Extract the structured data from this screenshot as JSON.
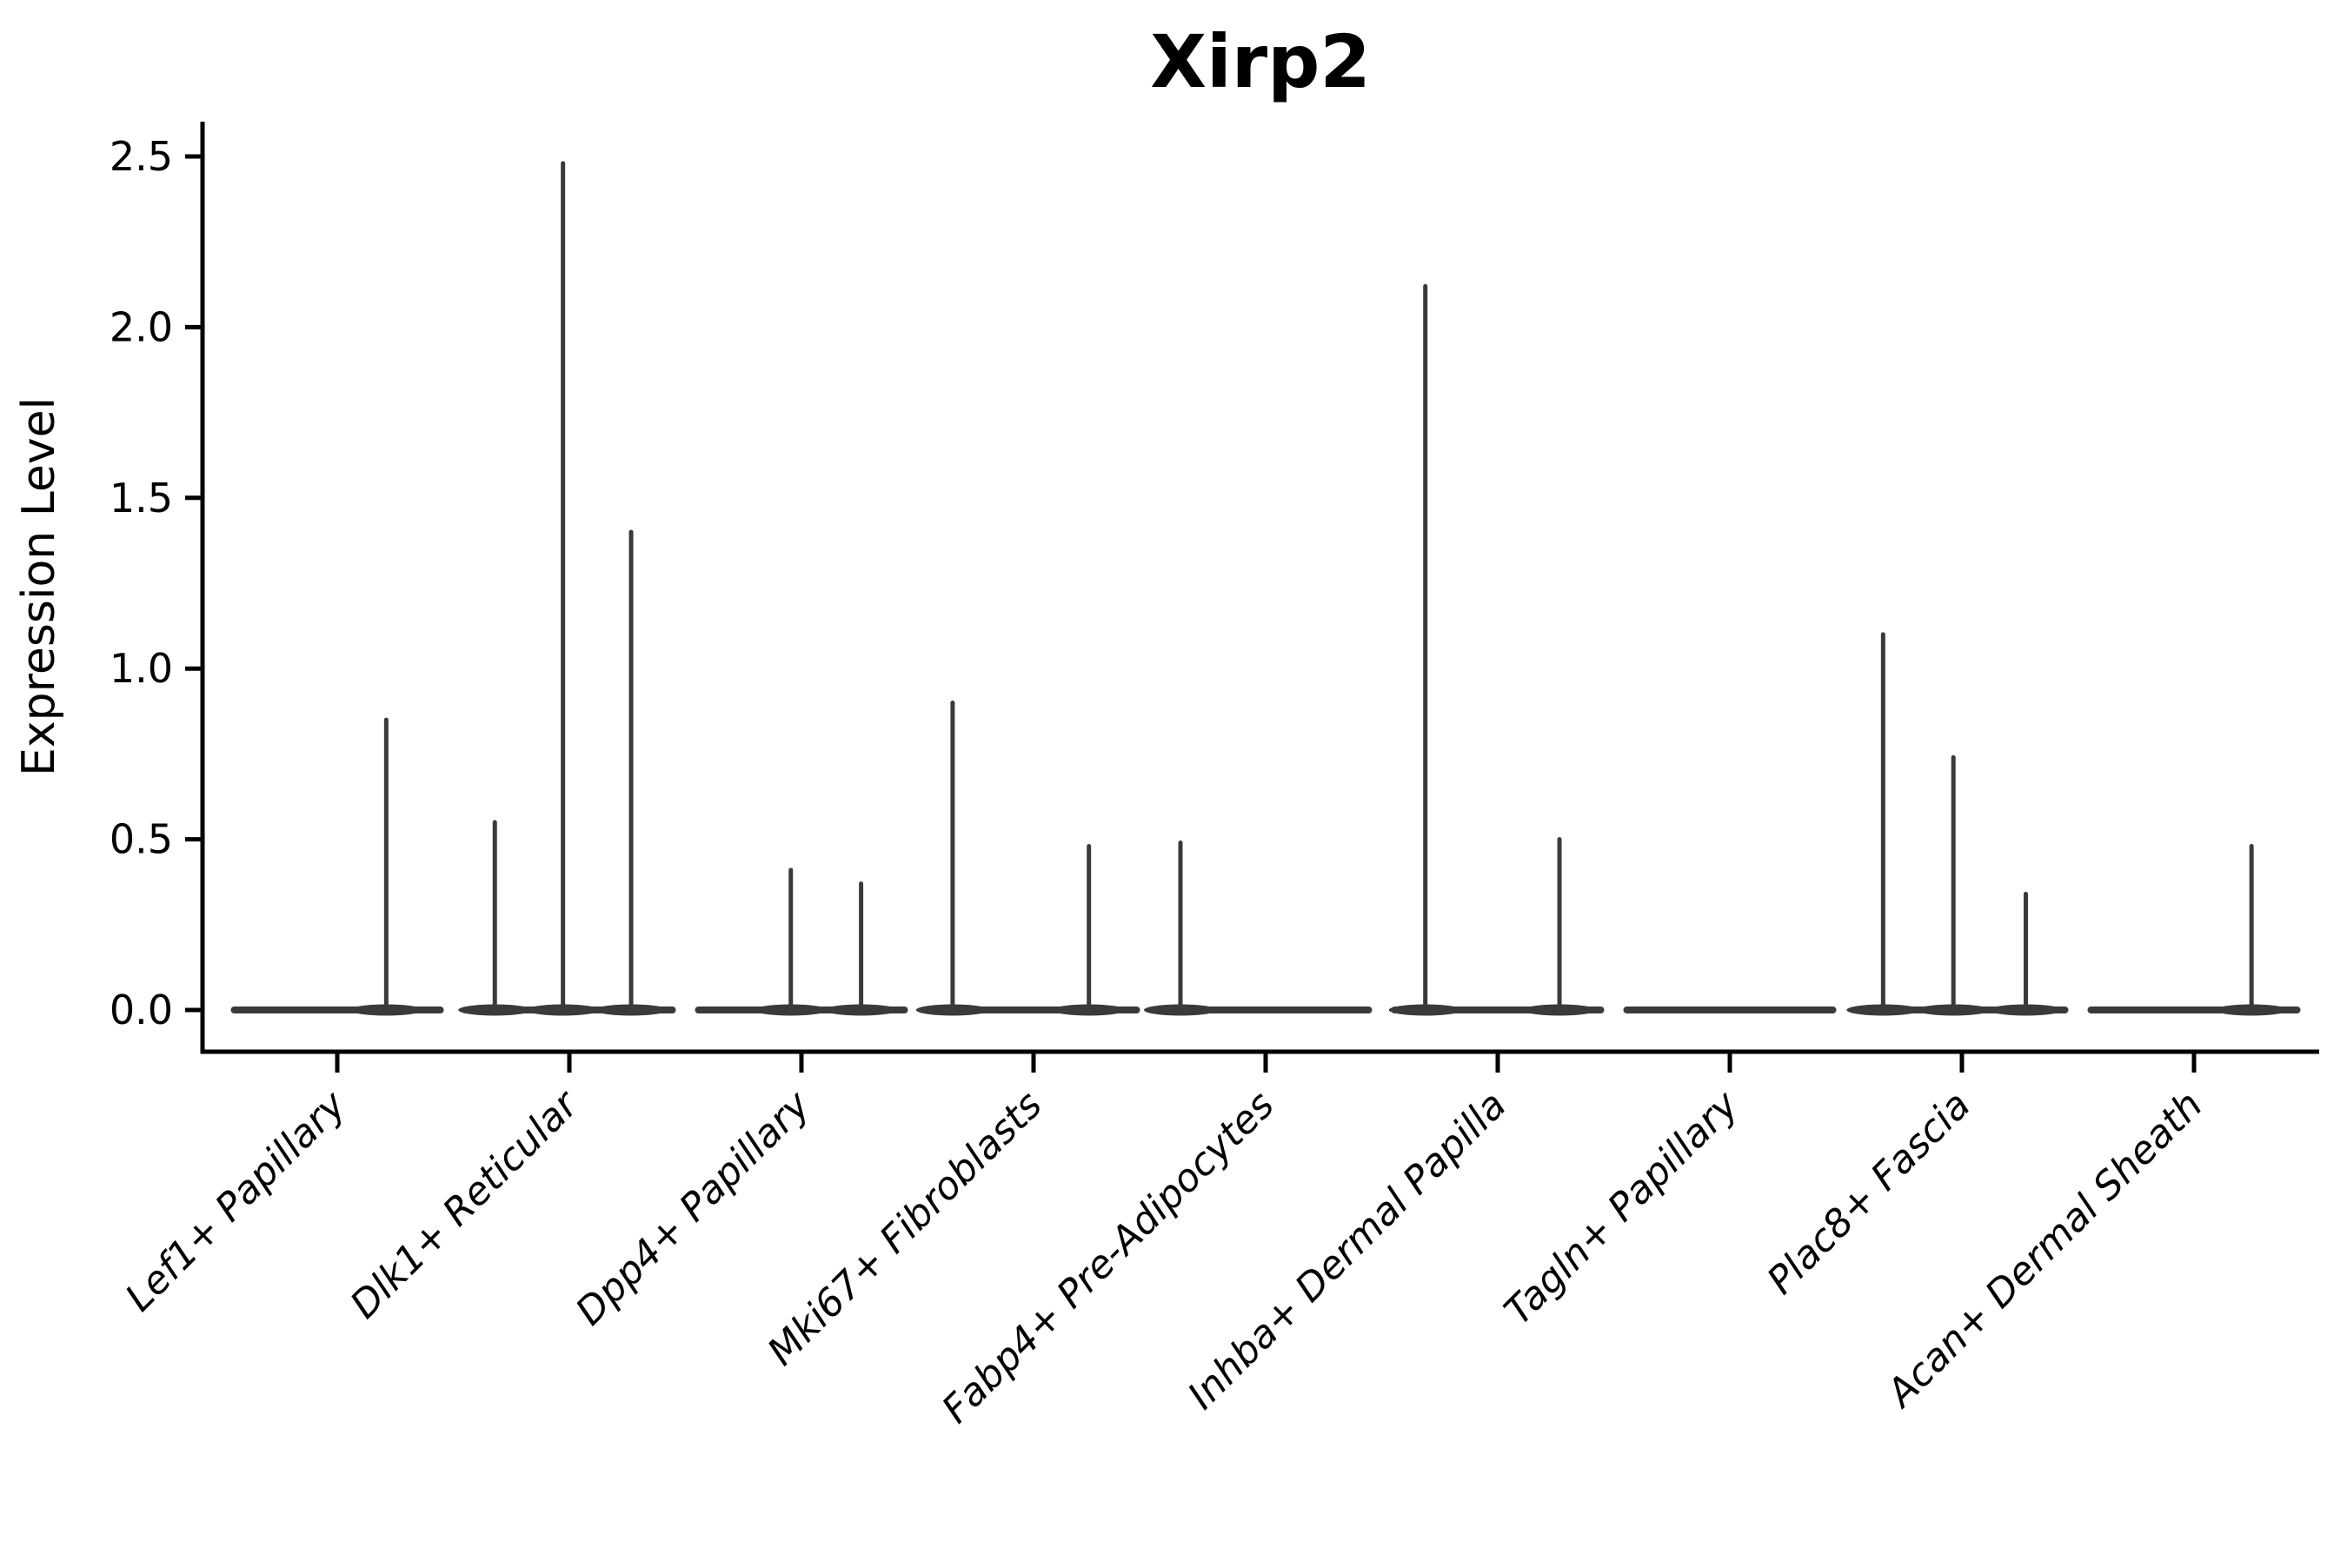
{
  "colors": {
    "violin": "#3a3a3a",
    "axis": "#000000",
    "text": "#000000",
    "background": "#ffffff"
  },
  "chart_data": {
    "type": "violin",
    "title": "Xirp2",
    "xlabel": "",
    "ylabel": "Expression Level",
    "legend": "none",
    "grid": false,
    "ylim": [
      0,
      2.6
    ],
    "ytick_values": [
      0.0,
      0.5,
      1.0,
      1.5,
      2.0,
      2.5
    ],
    "ytick_labels": [
      "0.0",
      "0.5",
      "1.0",
      "1.5",
      "2.0",
      "2.5"
    ],
    "categories": [
      "Lef1+ Papillary",
      "Dlk1+ Reticular",
      "Dpp4+ Papillary",
      "Mki67+ Fibroblasts",
      "Fabp4+ Pre-Adipocytes",
      "Inhba+ Dermal Papilla",
      "Tagln+ Papillary",
      "Plac8+ Fascia",
      "Acan+ Dermal Sheath"
    ],
    "series": [
      {
        "name": "Lef1+ Papillary",
        "baseline_value": 0.0,
        "spikes": [
          {
            "pos": 0.73,
            "value": 0.85
          }
        ]
      },
      {
        "name": "Dlk1+ Reticular",
        "baseline_value": 0.0,
        "spikes": [
          {
            "pos": 0.15,
            "value": 0.55
          },
          {
            "pos": 0.47,
            "value": 2.48
          },
          {
            "pos": 0.79,
            "value": 1.4
          }
        ]
      },
      {
        "name": "Dpp4+ Papillary",
        "baseline_value": 0.0,
        "spikes": [
          {
            "pos": 0.45,
            "value": 0.41
          },
          {
            "pos": 0.78,
            "value": 0.37
          }
        ]
      },
      {
        "name": "Mki67+ Fibroblasts",
        "baseline_value": 0.0,
        "spikes": [
          {
            "pos": 0.12,
            "value": 0.9
          },
          {
            "pos": 0.76,
            "value": 0.48
          }
        ]
      },
      {
        "name": "Fabp4+ Pre-Adipocytes",
        "baseline_value": 0.0,
        "spikes": [
          {
            "pos": 0.1,
            "value": 0.49
          }
        ]
      },
      {
        "name": "Inhba+ Dermal Papilla",
        "baseline_value": 0.0,
        "spikes": [
          {
            "pos": 0.16,
            "value": 2.12
          },
          {
            "pos": 0.79,
            "value": 0.5
          }
        ]
      },
      {
        "name": "Tagln+ Papillary",
        "baseline_value": 0.0,
        "spikes": []
      },
      {
        "name": "Plac8+ Fascia",
        "baseline_value": 0.0,
        "spikes": [
          {
            "pos": 0.13,
            "value": 1.1
          },
          {
            "pos": 0.46,
            "value": 0.74
          },
          {
            "pos": 0.8,
            "value": 0.34
          }
        ]
      },
      {
        "name": "Acan+ Dermal Sheath",
        "baseline_value": 0.0,
        "spikes": [
          {
            "pos": 0.77,
            "value": 0.48
          }
        ]
      }
    ]
  }
}
